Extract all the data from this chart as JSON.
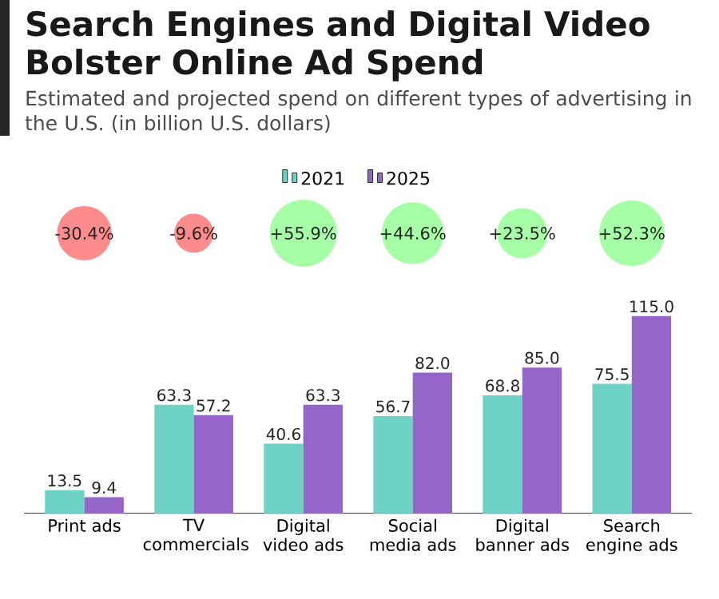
{
  "chart_data": {
    "type": "bar",
    "title": "Search Engines and Digital Video Bolster Online Ad Spend",
    "subtitle": "Estimated and projected spend on different types of advertising in the U.S. (in billion U.S. dollars)",
    "categories": [
      "Print ads",
      "TV commercials",
      "Digital video ads",
      "Social media ads",
      "Digital banner ads",
      "Search engine ads"
    ],
    "series": [
      {
        "name": "2021",
        "color": "#6ed3c6",
        "values": [
          13.5,
          63.3,
          40.6,
          56.7,
          68.8,
          75.5
        ],
        "value_labels": [
          "13.5",
          "63.3",
          "40.6",
          "56.7",
          "68.8",
          "75.5"
        ]
      },
      {
        "name": "2025",
        "color": "#9466c9",
        "values": [
          9.4,
          57.2,
          63.3,
          82.0,
          85.0,
          115.0
        ],
        "value_labels": [
          "9.4",
          "57.2",
          "63.3",
          "82.0",
          "85.0",
          "115.0"
        ]
      }
    ],
    "annotations": [
      "-30.4%",
      "-9.6%",
      "+55.9%",
      "+44.6%",
      "+23.5%",
      "+52.3%"
    ],
    "legend": "top"
  }
}
